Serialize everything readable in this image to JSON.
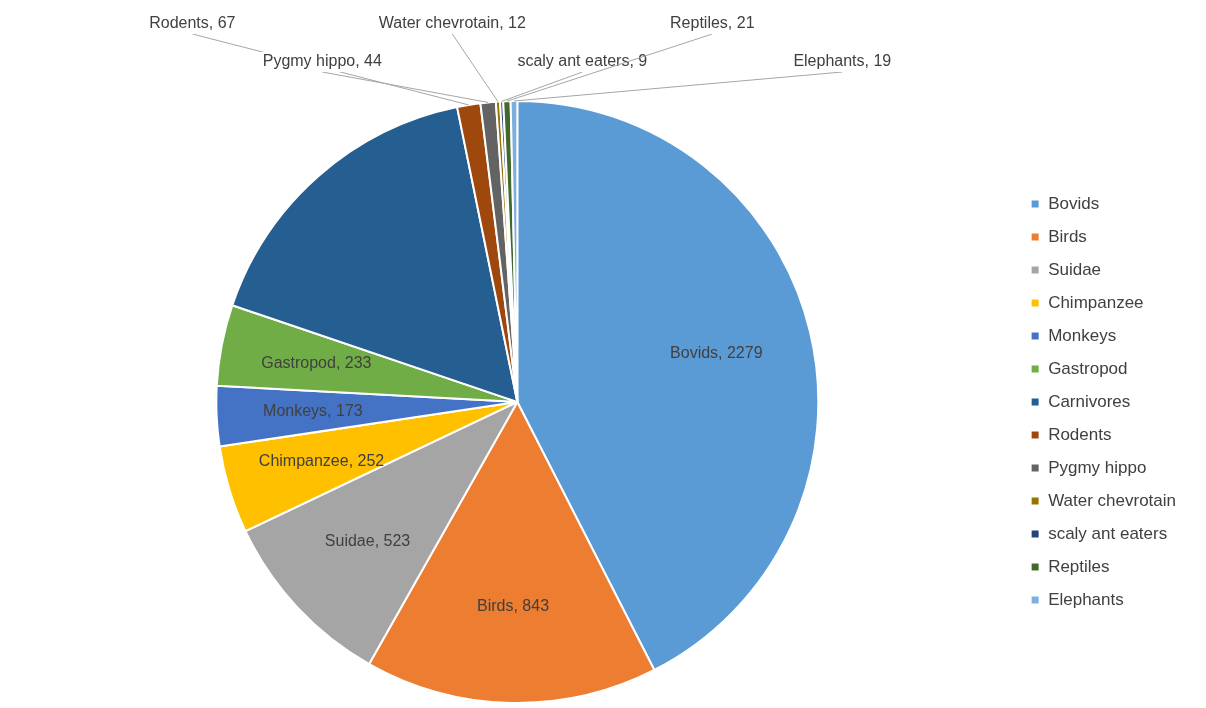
{
  "chart_data": {
    "type": "pie",
    "categories": [
      "Bovids",
      "Birds",
      "Suidae",
      "Chimpanzee",
      "Monkeys",
      "Gastropod",
      "Carnivores",
      "Rodents",
      "Pygmy hippo",
      "Water chevrotain",
      "scaly ant eaters",
      "Reptiles",
      "Elephants"
    ],
    "values": [
      2279,
      843,
      523,
      252,
      173,
      233,
      890,
      67,
      44,
      12,
      9,
      21,
      19
    ],
    "colors": [
      "#5b9bd5",
      "#ed7d31",
      "#a5a5a5",
      "#ffc000",
      "#4472c4",
      "#70ad47",
      "#255e91",
      "#9e480e",
      "#636363",
      "#997300",
      "#264478",
      "#43682b",
      "#7cafdd"
    ],
    "value_labels": [
      "Bovids, 2279",
      "Birds, 843",
      "Suidae, 523",
      "Chimpanzee, 252",
      "Monkeys, 173",
      "Gastropod, 233",
      null,
      "Rodents, 67",
      "Pygmy hippo, 44",
      "Water chevrotain, 12",
      "scaly ant eaters, 9",
      "Reptiles, 21",
      "Elephants, 19"
    ],
    "legend": "right"
  }
}
